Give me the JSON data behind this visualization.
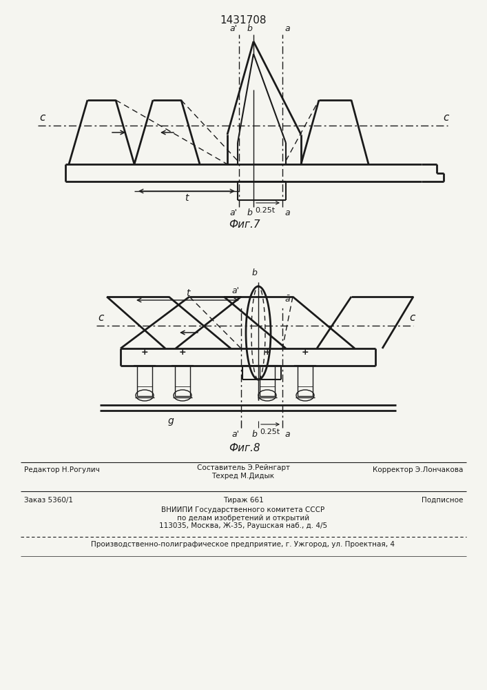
{
  "patent_number": "1431708",
  "fig7_label": "Фиг.7",
  "fig8_label": "Фиг.8",
  "footer_line1_left": "Редактор Н.Рогулич",
  "footer_line1_center": "Составитель Э.Рейнгарт\nТехред М.Дидык",
  "footer_line1_right": "Корректор Э.Лончакова",
  "footer_line2_left": "Заказ 5360/1",
  "footer_line2_center": "Тираж 661",
  "footer_line2_right": "Подписное",
  "footer_line3": "ВНИИПИ Государственного комитета СССР\nпо делам изобретений и открытий\n113035, Москва, Ж-35, Раушская наб., д. 4/5",
  "footer_line4": "Производственно-полиграфическое предприятие, г. Ужгород, ул. Проектная, 4",
  "line_color": "#1a1a1a",
  "bg_color": "#f5f5f0"
}
